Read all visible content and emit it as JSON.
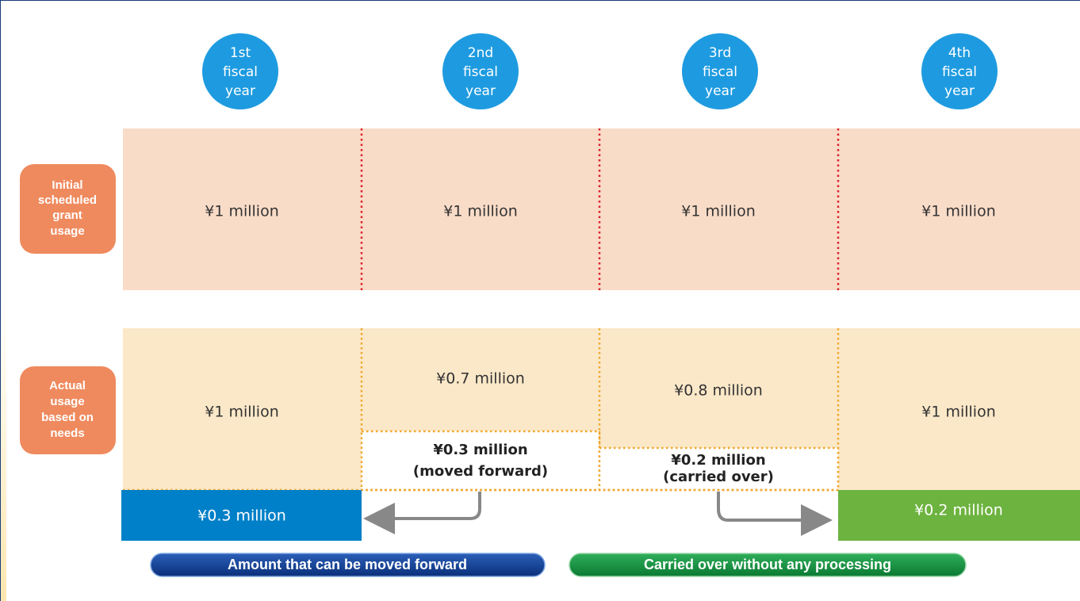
{
  "header": [
    [
      "1st",
      "fiscal",
      "year"
    ],
    [
      "2nd",
      "fiscal",
      "year"
    ],
    [
      "3rd",
      "fiscal",
      "year"
    ],
    [
      "4th",
      "fiscal",
      "year"
    ]
  ],
  "rows": [
    {
      "label": [
        "Initial",
        "scheduled",
        "grant",
        "usage"
      ],
      "cells": [
        "¥1 million",
        "¥1 million",
        "¥1 million",
        "¥1 million"
      ]
    },
    {
      "label": [
        "Actual",
        "usage",
        "based on",
        "needs"
      ],
      "cells": [
        "¥1 million",
        "¥0.7 million",
        "¥0.8 million",
        "¥1 million"
      ]
    }
  ],
  "remainders": [
    [
      "¥0.3 million",
      "(moved forward)"
    ],
    [
      "¥0.2 million",
      "(carried over)"
    ]
  ],
  "transfers": [
    "¥0.3 million",
    "¥0.2 million"
  ],
  "legend": [
    "Amount that can be moved forward",
    "Carried over without any processing"
  ]
}
